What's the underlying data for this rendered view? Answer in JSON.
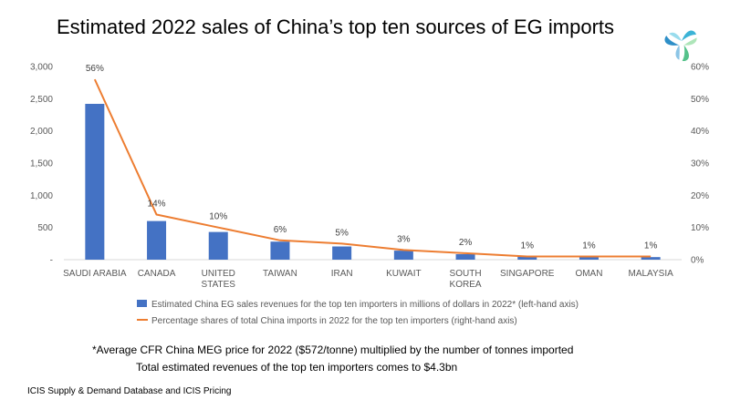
{
  "title": "Estimated 2022 sales of China’s top ten sources of EG imports",
  "logo_icon": "icis-logo-icon",
  "chart_data": {
    "type": "bar",
    "categories": [
      [
        "SAUDI ARABIA"
      ],
      [
        "CANADA"
      ],
      [
        "UNITED",
        "STATES"
      ],
      [
        "TAIWAN"
      ],
      [
        "IRAN"
      ],
      [
        "KUWAIT"
      ],
      [
        "SOUTH",
        "KOREA"
      ],
      [
        "SINGAPORE"
      ],
      [
        "OMAN"
      ],
      [
        "MALAYSIA"
      ]
    ],
    "series": [
      {
        "name": "Estimated China EG sales revenues for the top ten importers in millions of dollars in 2022* (left-hand axis)",
        "type": "bar",
        "axis": "left",
        "color": "#4472C4",
        "values": [
          2420,
          600,
          430,
          280,
          205,
          140,
          85,
          60,
          50,
          40
        ]
      },
      {
        "name": "Percentage shares of total China imports in 2022 for the top ten importers  (right-hand axis)",
        "type": "line",
        "axis": "right",
        "color": "#ED7D31",
        "values": [
          56,
          14,
          10,
          6,
          5,
          3,
          2,
          1,
          1,
          1
        ],
        "data_labels": [
          "56%",
          "14%",
          "10%",
          "6%",
          "5%",
          "3%",
          "2%",
          "1%",
          "1%",
          "1%"
        ]
      }
    ],
    "y_left": {
      "ylim": [
        0,
        3000
      ],
      "ticks": [
        0,
        500,
        1000,
        1500,
        2000,
        2500,
        3000
      ],
      "tick_labels": [
        "-",
        "500",
        "1,000",
        "1,500",
        "2,000",
        "2,500",
        "3,000"
      ]
    },
    "y_right": {
      "ylim": [
        0,
        60
      ],
      "ticks": [
        0,
        10,
        20,
        30,
        40,
        50,
        60
      ],
      "tick_labels": [
        "0%",
        "10%",
        "20%",
        "30%",
        "40%",
        "50%",
        "60%"
      ]
    },
    "grid": false,
    "legend_position": "bottom"
  },
  "notes": {
    "line1": "*Average CFR China MEG price for 2022 ($572/tonne) multiplied by the number of tonnes imported",
    "line2": "Total estimated revenues of the top ten importers comes to $4.3bn"
  },
  "source": "ICIS Supply & Demand Database and ICIS Pricing"
}
